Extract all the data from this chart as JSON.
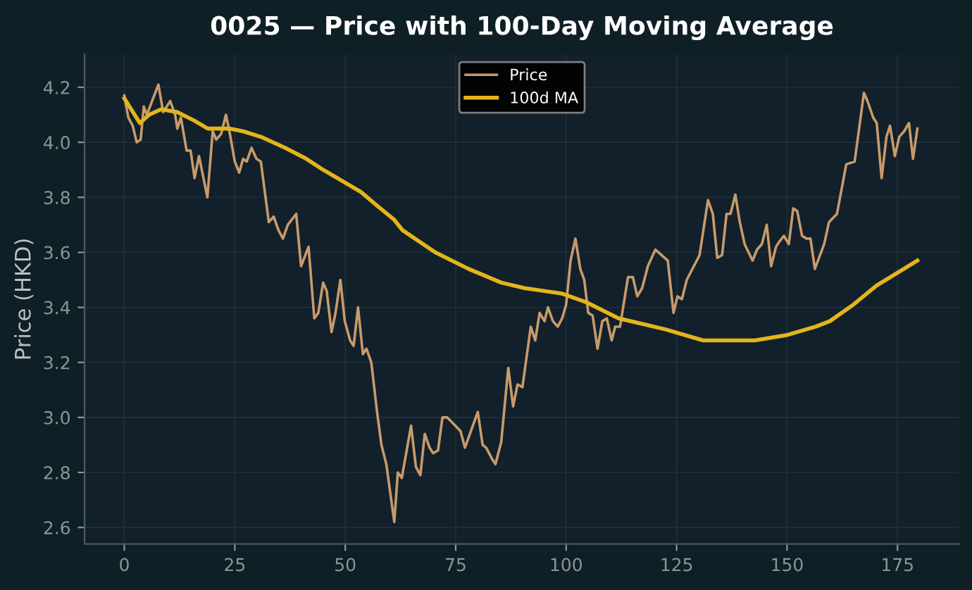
{
  "chart_data": {
    "type": "line",
    "title": "0025 — Price with 100-Day Moving Average",
    "ylabel": "Price (HKD)",
    "xlim": [
      -9,
      189
    ],
    "xticks": [
      0,
      25,
      50,
      75,
      100,
      125,
      150,
      175
    ],
    "ylim": [
      2.54,
      4.32
    ],
    "yticks": [
      2.6,
      2.8,
      {
        "value": 3,
        "label": "3.0"
      },
      3.2,
      3.4,
      3.6,
      3.8,
      {
        "value": 4,
        "label": "4.0"
      },
      4.2
    ],
    "grid": true,
    "legend": "top",
    "line_style": "solid",
    "marker": "none",
    "series": [
      {
        "name": "Price",
        "color": "#c89a6a",
        "x": [
          0,
          0.9,
          1.9,
          2.8,
          3.7,
          4.4,
          5.1,
          7.7,
          8.8,
          10.4,
          11.5,
          12,
          12.8,
          14.1,
          15,
          15.9,
          16.9,
          18.8,
          20,
          20.8,
          21.9,
          23,
          23.9,
          25,
          26,
          26.9,
          27.7,
          28.8,
          29.9,
          30.9,
          32.7,
          33.8,
          34.9,
          35.9,
          37,
          38.9,
          40,
          41.7,
          43,
          43.9,
          45,
          45.8,
          46.9,
          47.8,
          48.9,
          49.9,
          51.1,
          51.9,
          52.9,
          54,
          54.8,
          55.9,
          57.2,
          58.2,
          59.3,
          61.1,
          61.9,
          62.8,
          64.9,
          66,
          67,
          68,
          69.1,
          69.9,
          71,
          72,
          73.1,
          74.9,
          76.1,
          77.1,
          80,
          81.1,
          81.9,
          83.2,
          84,
          85.3,
          86.9,
          88,
          89,
          90.1,
          92,
          93,
          94,
          95.1,
          95.9,
          97,
          98.1,
          99.1,
          100,
          101,
          102.1,
          103.2,
          104.1,
          105,
          106,
          107.1,
          108.2,
          109.2,
          110.3,
          111.1,
          112.2,
          114,
          115.1,
          116.1,
          117.2,
          118.5,
          120.2,
          123,
          124.3,
          125.2,
          126.2,
          127.3,
          130.2,
          132.1,
          133.2,
          134.2,
          135.3,
          136.3,
          137.2,
          138.3,
          139.3,
          140.4,
          142.2,
          143.2,
          144.3,
          145.4,
          146.4,
          147.5,
          148.3,
          149.3,
          150.4,
          151.4,
          152.3,
          153.4,
          154.4,
          155.3,
          156.3,
          158.4,
          159.5,
          161.3,
          163.4,
          165.3,
          167.4,
          168.2,
          169.5,
          170.3,
          171.4,
          172.5,
          173.3,
          174.4,
          175.4,
          176.5,
          177.6,
          178.5,
          179.5
        ],
        "values": [
          4.17,
          4.09,
          4.06,
          4.0,
          4.01,
          4.13,
          4.1,
          4.21,
          4.11,
          4.15,
          4.1,
          4.05,
          4.09,
          3.97,
          3.97,
          3.87,
          3.95,
          3.8,
          4.04,
          4.01,
          4.03,
          4.1,
          4.03,
          3.93,
          3.89,
          3.94,
          3.93,
          3.98,
          3.94,
          3.93,
          3.71,
          3.73,
          3.68,
          3.65,
          3.7,
          3.74,
          3.55,
          3.62,
          3.36,
          3.38,
          3.49,
          3.46,
          3.31,
          3.38,
          3.5,
          3.35,
          3.28,
          3.26,
          3.4,
          3.23,
          3.25,
          3.2,
          3.02,
          2.9,
          2.83,
          2.62,
          2.8,
          2.78,
          2.97,
          2.82,
          2.79,
          2.94,
          2.89,
          2.87,
          2.88,
          3.0,
          3.0,
          2.97,
          2.95,
          2.89,
          3.02,
          2.9,
          2.89,
          2.85,
          2.83,
          2.91,
          3.18,
          3.04,
          3.12,
          3.11,
          3.33,
          3.28,
          3.38,
          3.35,
          3.4,
          3.35,
          3.33,
          3.36,
          3.41,
          3.57,
          3.65,
          3.54,
          3.5,
          3.38,
          3.37,
          3.25,
          3.35,
          3.36,
          3.28,
          3.33,
          3.33,
          3.51,
          3.51,
          3.44,
          3.47,
          3.55,
          3.61,
          3.57,
          3.38,
          3.44,
          3.43,
          3.5,
          3.59,
          3.79,
          3.74,
          3.58,
          3.59,
          3.74,
          3.74,
          3.81,
          3.71,
          3.63,
          3.57,
          3.61,
          3.63,
          3.7,
          3.55,
          3.62,
          3.64,
          3.66,
          3.63,
          3.76,
          3.75,
          3.66,
          3.65,
          3.65,
          3.54,
          3.63,
          3.71,
          3.74,
          3.92,
          3.93,
          4.18,
          4.15,
          4.09,
          4.07,
          3.87,
          4.02,
          4.06,
          3.95,
          4.02,
          4.04,
          4.07,
          3.94,
          4.05
        ]
      },
      {
        "name": "100d MA",
        "color": "#e3b51c",
        "x": [
          0,
          3.5,
          5.6,
          8.3,
          12,
          15.7,
          18.9,
          23.7,
          26.9,
          30.9,
          36.4,
          41.2,
          45,
          48.2,
          53.5,
          57.2,
          61,
          63,
          70.4,
          77.9,
          85.3,
          90.6,
          99.1,
          104.4,
          111.9,
          117.2,
          122.5,
          131,
          135.3,
          142.7,
          150.1,
          156.5,
          159.7,
          165,
          170.3,
          179.5
        ],
        "values": [
          4.16,
          4.07,
          4.1,
          4.12,
          4.11,
          4.08,
          4.05,
          4.05,
          4.04,
          4.02,
          3.98,
          3.94,
          3.9,
          3.87,
          3.82,
          3.77,
          3.72,
          3.68,
          3.6,
          3.54,
          3.49,
          3.47,
          3.45,
          3.42,
          3.36,
          3.34,
          3.32,
          3.28,
          3.28,
          3.28,
          3.3,
          3.33,
          3.35,
          3.41,
          3.48,
          3.57
        ]
      }
    ]
  }
}
